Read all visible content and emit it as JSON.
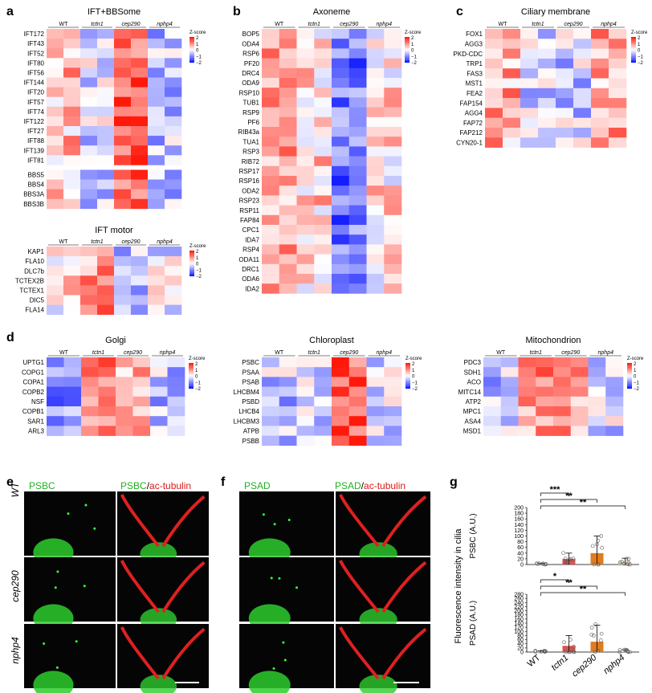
{
  "panel_labels": {
    "a": "a",
    "b": "b",
    "c": "c",
    "d": "d",
    "e": "e",
    "f": "f",
    "g": "g"
  },
  "group_labels": [
    "WT",
    "tctn1",
    "cep290",
    "nphp4"
  ],
  "legend": {
    "title": "Z-score",
    "ticks": [
      "2",
      "1",
      "0",
      "−1",
      "−2"
    ]
  },
  "heatmaps": [
    {
      "id": "ift",
      "title": "IFT+BBSome",
      "rows": [
        "IFT172",
        "IFT43",
        "IFT52",
        "IFT80",
        "IFT56",
        "IFT144",
        "IFT20",
        "IFT57",
        "IFT74",
        "IFT122",
        "IFT27",
        "IFT88",
        "IFT139",
        "IFT81",
        "",
        "BBS5",
        "BBS4",
        "BBS3A",
        "BBS3B"
      ]
    },
    {
      "id": "ift-motor",
      "title": "IFT motor",
      "rows": [
        "KAP1",
        "FLA10",
        "DLC7b",
        "TCTEX2B",
        "TCTEX1",
        "DIC5",
        "FLA14"
      ]
    },
    {
      "id": "axoneme",
      "title": "Axoneme",
      "rows": [
        "BOP5",
        "ODA4",
        "RSP6",
        "PF20",
        "DRC4",
        "ODA9",
        "RSP10",
        "TUB1",
        "RSP9",
        "PF6",
        "RIB43a",
        "TUA1",
        "RSP3",
        "RIB72",
        "RSP17",
        "RSP16",
        "ODA2",
        "RSP23",
        "RSP11",
        "FAP84",
        "CPC1",
        "IDA7",
        "RSP4",
        "ODA11",
        "DRC1",
        "ODA6",
        "IDA2"
      ]
    },
    {
      "id": "ciliary-membrane",
      "title": "Ciliary membrane",
      "rows": [
        "FOX1",
        "AGG3",
        "PKD-CDC",
        "TRP1",
        "FAS3",
        "MST1",
        "FEA2",
        "FAP154",
        "AGG4",
        "FAP72",
        "FAP212",
        "CYN20-1"
      ]
    },
    {
      "id": "golgi",
      "title": "Golgi",
      "rows": [
        "UPTG1",
        "COPG1",
        "COPA1",
        "COPB2",
        "NSF",
        "COPB1",
        "SAR1",
        "ARL3"
      ]
    },
    {
      "id": "chloroplast",
      "title": "Chloroplast",
      "rows": [
        "PSBC",
        "PSAA",
        "PSAB",
        "LHCBM4",
        "PSBD",
        "LHCB4",
        "LHCBM3",
        "ATPB",
        "PSBB"
      ]
    },
    {
      "id": "mitochondrion",
      "title": "Mitochondrion",
      "rows": [
        "PDC3",
        "SDH1",
        "ACO",
        "MITC14",
        "ATP2",
        "MPC1",
        "ASA4",
        "MSD1"
      ]
    }
  ],
  "micrographs": {
    "e": {
      "left_label": "PSBC",
      "right_label_green": "PSBC",
      "right_label_sep": "/",
      "right_label_red": "ac-tubulin"
    },
    "f": {
      "left_label": "PSAD",
      "right_label_green": "PSAD",
      "right_label_sep": "/",
      "right_label_red": "ac-tubulin"
    },
    "row_labels": [
      "WT",
      "cep290",
      "nphp4"
    ]
  },
  "chart_data": {
    "type": "bar",
    "ylabel_outer": "Fluorescence intensity in cilia",
    "categories": [
      "WT",
      "tctn1",
      "cep290",
      "nphp4"
    ],
    "panels": [
      {
        "ylabel": "PSBC (A.U.)",
        "ylim": [
          0,
          200
        ],
        "ticks": [
          "0",
          "20",
          "40",
          "60",
          "80",
          "100",
          "120",
          "140",
          "160",
          "180",
          "200"
        ],
        "values": [
          2,
          20,
          40,
          10
        ],
        "errors": [
          2,
          20,
          60,
          12
        ],
        "significance": [
          {
            "from": "WT",
            "to": "tctn1",
            "label": "***"
          },
          {
            "from": "WT",
            "to": "cep290",
            "label": "**"
          },
          {
            "from": "WT",
            "to": "nphp4",
            "label": "**"
          }
        ]
      },
      {
        "ylabel": "PSAD (A.U.)",
        "ylim": [
          0,
          280
        ],
        "ticks": [
          "0",
          "20",
          "40",
          "60",
          "80",
          "100",
          "120",
          "140",
          "160",
          "180",
          "200",
          "220",
          "240",
          "260",
          "280"
        ],
        "values": [
          3,
          30,
          50,
          5
        ],
        "errors": [
          3,
          50,
          80,
          6
        ],
        "significance": [
          {
            "from": "WT",
            "to": "tctn1",
            "label": "*"
          },
          {
            "from": "WT",
            "to": "cep290",
            "label": "**"
          },
          {
            "from": "WT",
            "to": "nphp4",
            "label": "**"
          }
        ]
      }
    ]
  }
}
